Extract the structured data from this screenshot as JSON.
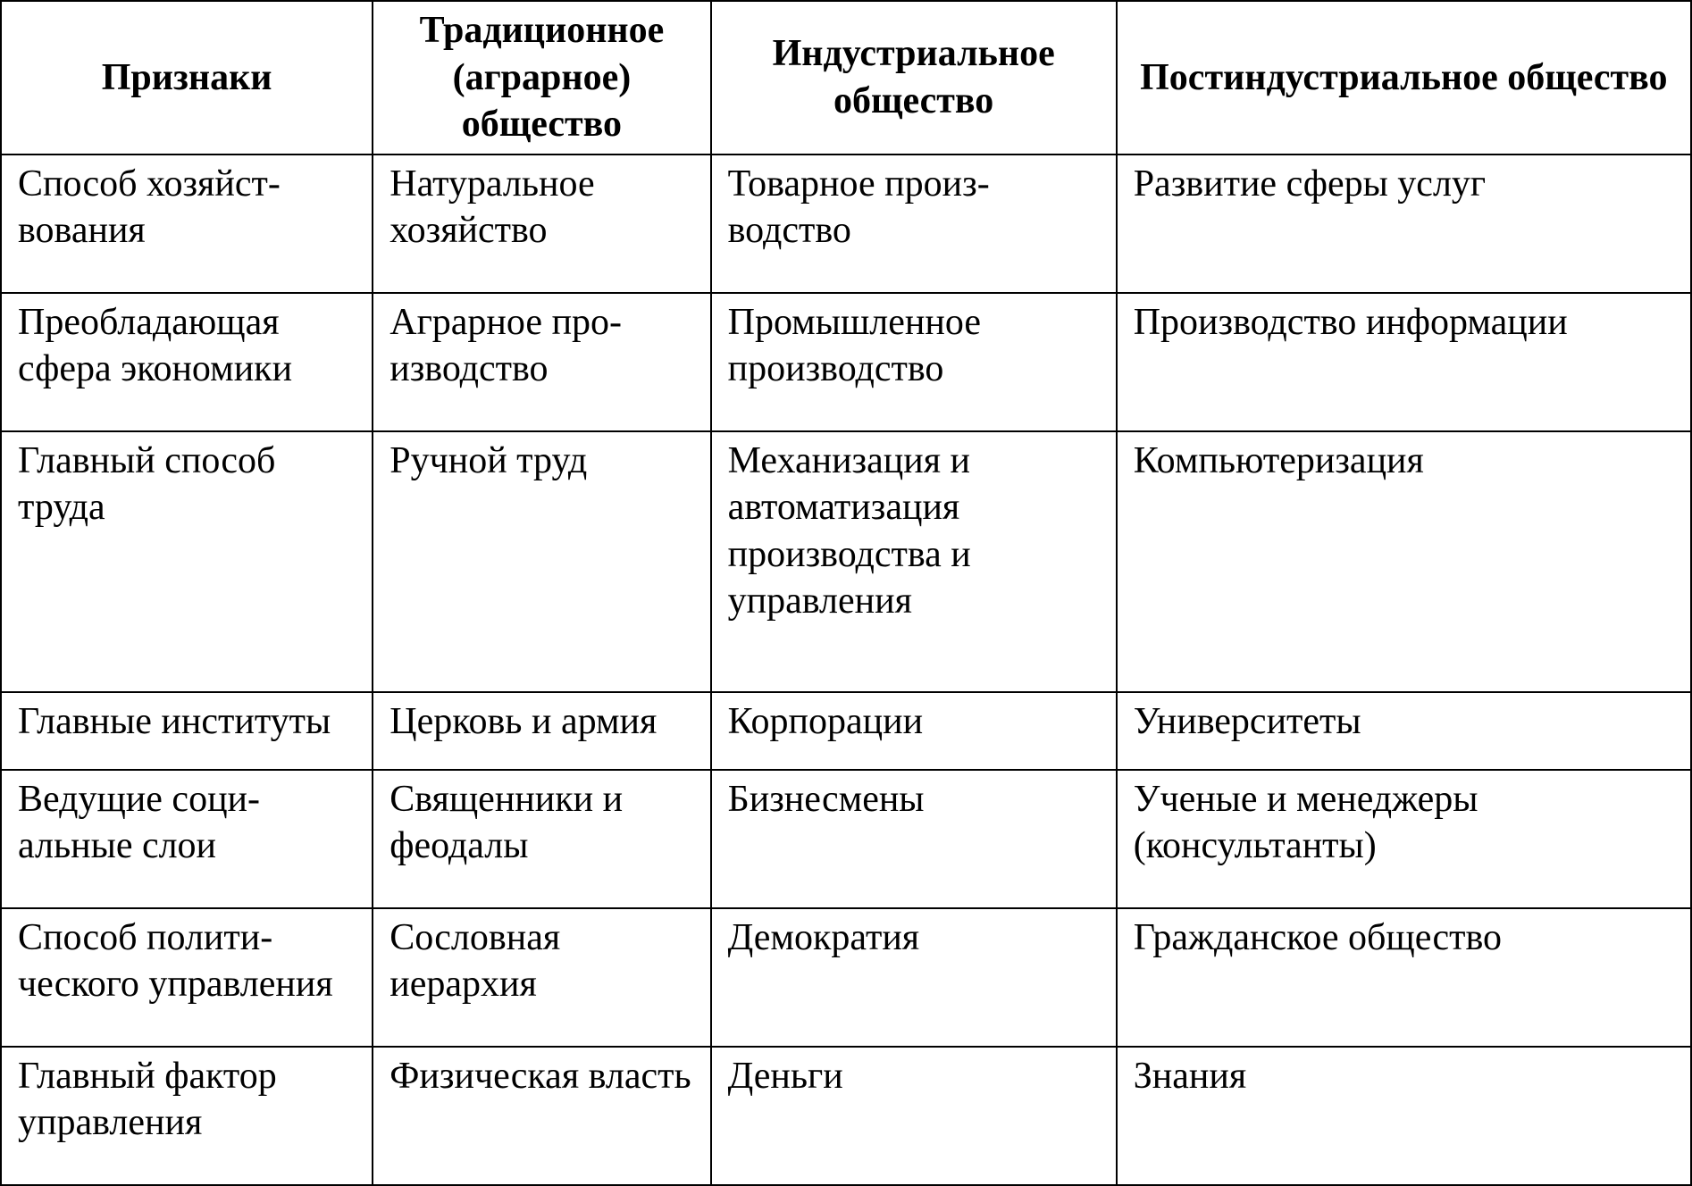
{
  "table": {
    "border_color": "#000000",
    "background_color": "#ffffff",
    "text_color": "#000000",
    "font_family": "Times New Roman",
    "header_fontsize_pt": 32,
    "body_fontsize_pt": 32,
    "col_widths_pct": [
      22,
      20,
      24,
      34
    ],
    "columns": [
      "Признаки",
      "Традиционное (аграрное) общество",
      "Индустриальное общество",
      "Постиндустриальное общество"
    ],
    "rows": [
      [
        "Способ хозяйст­вования",
        "Натуральное хозяйство",
        "Товарное произ­водство",
        "Развитие сферы услуг"
      ],
      [
        "Преобладающая сфера экономи­ки",
        "Аграрное про­изводство",
        "Промышленное производство",
        "Производство ин­формации"
      ],
      [
        "Главный способ труда",
        "Ручной труд",
        "Механизация и автоматизация производства и управления",
        "Компьютеризация"
      ],
      [
        "Главные инсти­туты",
        "Церковь и армия",
        "Корпорации",
        "Университеты"
      ],
      [
        "Ведущие соци­альные слои",
        "Священники и феодалы",
        "Бизнесмены",
        "Ученые и менеджеры (консультанты)"
      ],
      [
        "Способ полити­ческого управ­ления",
        "Сословная иерархия",
        "Демократия",
        "Гражданское общест­во"
      ],
      [
        "Главный фактор управления",
        "Физическая власть",
        "Деньги",
        "Знания"
      ]
    ]
  }
}
